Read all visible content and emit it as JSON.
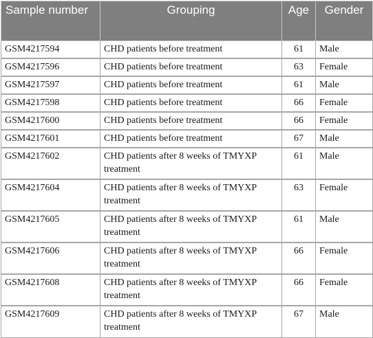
{
  "table": {
    "headers": {
      "sample": "Sample number",
      "grouping": "Grouping",
      "age": "Age",
      "gender": "Gender"
    },
    "rows": [
      {
        "sample": "GSM4217594",
        "grouping": "CHD patients before treatment",
        "age": "61",
        "gender": "Male"
      },
      {
        "sample": "GSM4217596",
        "grouping": "CHD patients before treatment",
        "age": "63",
        "gender": "Female"
      },
      {
        "sample": "GSM4217597",
        "grouping": "CHD patients before treatment",
        "age": "61",
        "gender": "Male"
      },
      {
        "sample": "GSM4217598",
        "grouping": "CHD patients before treatment",
        "age": "66",
        "gender": "Female"
      },
      {
        "sample": "GSM4217600",
        "grouping": "CHD patients before treatment",
        "age": "66",
        "gender": "Female"
      },
      {
        "sample": "GSM4217601",
        "grouping": "CHD patients before treatment",
        "age": "67",
        "gender": "Male"
      },
      {
        "sample": "GSM4217602",
        "grouping": "CHD patients after 8 weeks of TMYXP treatment",
        "age": "61",
        "gender": "Male"
      },
      {
        "sample": "GSM4217604",
        "grouping": "CHD patients after 8 weeks of TMYXP treatment",
        "age": "63",
        "gender": "Female"
      },
      {
        "sample": "GSM4217605",
        "grouping": "CHD patients after 8 weeks of TMYXP treatment",
        "age": "61",
        "gender": "Male"
      },
      {
        "sample": "GSM4217606",
        "grouping": "CHD patients after 8 weeks of TMYXP treatment",
        "age": "66",
        "gender": "Female"
      },
      {
        "sample": "GSM4217608",
        "grouping": "CHD patients after 8 weeks of TMYXP treatment",
        "age": "66",
        "gender": "Female"
      },
      {
        "sample": "GSM4217609",
        "grouping": "CHD patients after 8 weeks of TMYXP treatment",
        "age": "67",
        "gender": "Male"
      }
    ]
  },
  "colors": {
    "header_background": "#7f7f7f",
    "header_text": "#ffffff",
    "border": "#a6a6a6"
  }
}
